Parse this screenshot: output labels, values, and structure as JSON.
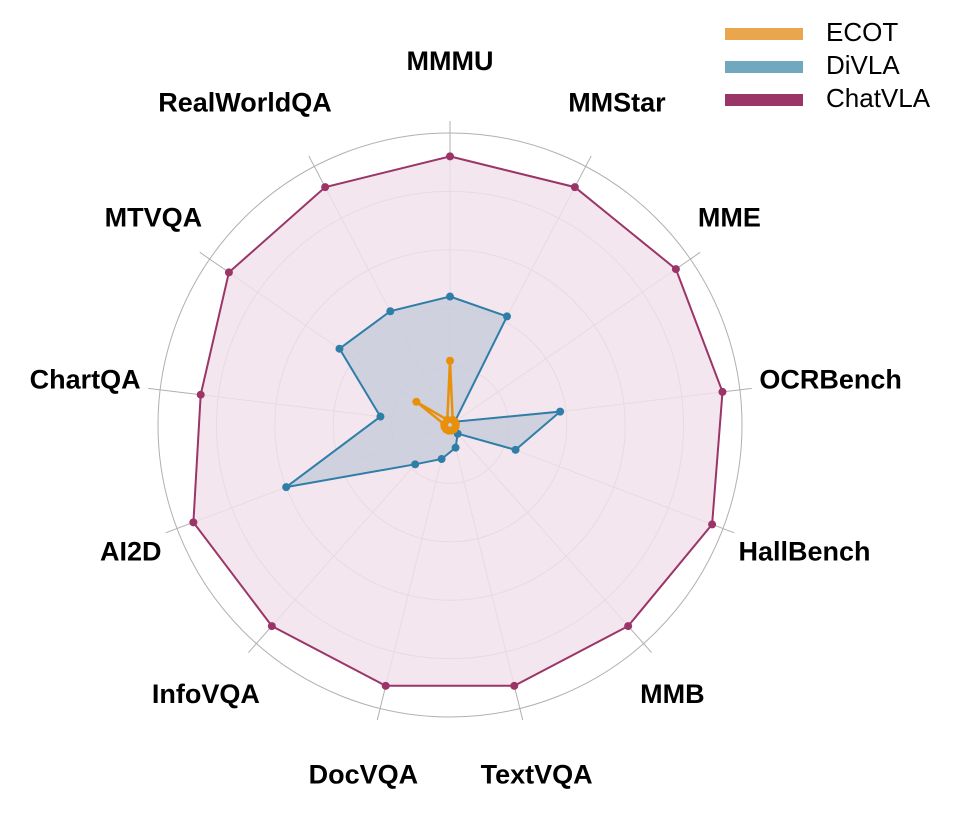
{
  "chart_data": {
    "type": "radar",
    "title": "",
    "categories": [
      "MMMU",
      "MMStar",
      "MME",
      "OCRBench",
      "HallBench",
      "MMB",
      "TextVQA",
      "DocVQA",
      "InfoVQA",
      "AI2D",
      "ChartQA",
      "MTVQA",
      "RealWorldQA"
    ],
    "rmax": 5,
    "grid_rings": 5,
    "grid": true,
    "legend_position": "top-right",
    "series": [
      {
        "name": "ECOT",
        "color": "#EAA64C",
        "marker_color": "#E8900A",
        "fill": false,
        "values": [
          1.1,
          0.1,
          0.1,
          0.1,
          0.1,
          0.1,
          0.1,
          0.1,
          0.1,
          0.1,
          0.1,
          0.7,
          0.1
        ]
      },
      {
        "name": "DiVLA",
        "color": "#6FA8BF",
        "marker_color": "#2E7EA8",
        "fill": true,
        "fill_color": "#C8CDDA",
        "values": [
          2.2,
          2.1,
          0.1,
          1.9,
          1.2,
          0.2,
          0.4,
          0.6,
          0.9,
          3.0,
          1.2,
          2.3,
          2.2
        ]
      },
      {
        "name": "ChatVLA",
        "color": "#9B3568",
        "marker_color": "#9B3568",
        "fill": true,
        "fill_color": "#F2E2EB",
        "values": [
          4.6,
          4.6,
          4.7,
          4.7,
          4.8,
          4.6,
          4.6,
          4.6,
          4.6,
          4.7,
          4.3,
          4.6,
          4.6
        ]
      }
    ]
  }
}
